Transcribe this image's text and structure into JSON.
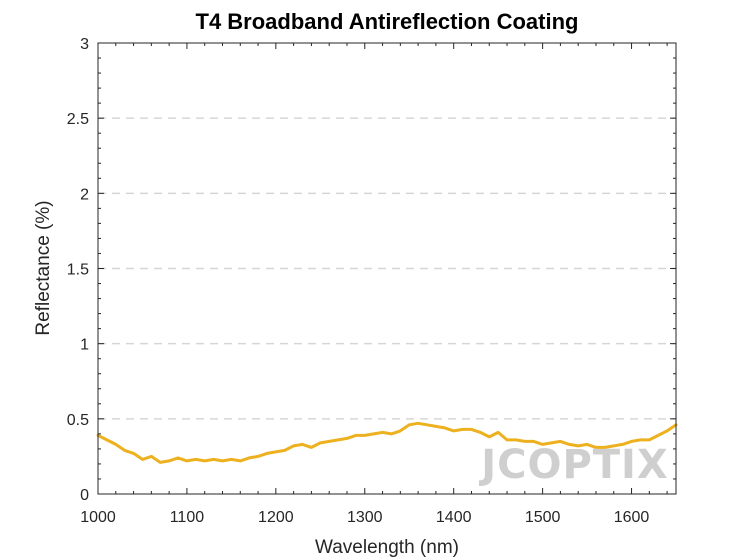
{
  "chart_data": {
    "type": "line",
    "title": "T4 Broadband Antireflection Coating",
    "xlabel": "Wavelength (nm)",
    "ylabel": "Reflectance (%)",
    "xlim": [
      1000,
      1650
    ],
    "ylim": [
      0,
      3
    ],
    "xticks": [
      1000,
      1100,
      1200,
      1300,
      1400,
      1500,
      1600
    ],
    "yticks": [
      0,
      0.5,
      1,
      1.5,
      2,
      2.5,
      3
    ],
    "ytick_labels": [
      "0",
      "0.5",
      "1",
      "1.5",
      "2",
      "2.5",
      "3"
    ],
    "grid": "horizontal dashed",
    "legend": "none",
    "watermark": "JCOPTIX",
    "series": [
      {
        "color": "#EDB120",
        "x": [
          1000,
          1010,
          1020,
          1030,
          1040,
          1050,
          1060,
          1070,
          1080,
          1090,
          1100,
          1110,
          1120,
          1130,
          1140,
          1150,
          1160,
          1170,
          1180,
          1190,
          1200,
          1210,
          1220,
          1230,
          1240,
          1250,
          1260,
          1270,
          1280,
          1290,
          1300,
          1310,
          1320,
          1330,
          1340,
          1350,
          1360,
          1370,
          1380,
          1390,
          1400,
          1410,
          1420,
          1430,
          1440,
          1450,
          1460,
          1470,
          1480,
          1490,
          1500,
          1510,
          1520,
          1530,
          1540,
          1550,
          1560,
          1570,
          1580,
          1590,
          1600,
          1610,
          1620,
          1630,
          1640,
          1650
        ],
        "y": [
          0.39,
          0.36,
          0.33,
          0.29,
          0.27,
          0.23,
          0.25,
          0.21,
          0.22,
          0.24,
          0.22,
          0.23,
          0.22,
          0.23,
          0.22,
          0.23,
          0.22,
          0.24,
          0.25,
          0.27,
          0.28,
          0.29,
          0.32,
          0.33,
          0.31,
          0.34,
          0.35,
          0.36,
          0.37,
          0.39,
          0.39,
          0.4,
          0.41,
          0.4,
          0.42,
          0.46,
          0.47,
          0.46,
          0.45,
          0.44,
          0.42,
          0.43,
          0.43,
          0.41,
          0.38,
          0.41,
          0.36,
          0.36,
          0.35,
          0.35,
          0.33,
          0.34,
          0.35,
          0.33,
          0.32,
          0.33,
          0.31,
          0.31,
          0.32,
          0.33,
          0.35,
          0.36,
          0.36,
          0.39,
          0.42,
          0.46
        ]
      }
    ]
  }
}
